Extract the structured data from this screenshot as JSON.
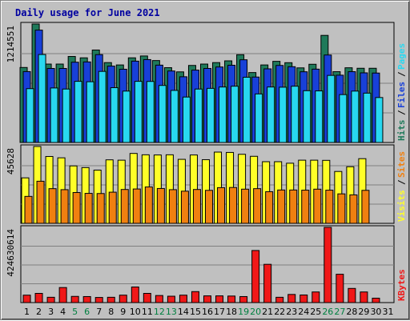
{
  "title": "Daily usage for June 2021",
  "colors": {
    "hits": "#1f7a5a",
    "files": "#1840d8",
    "pages": "#28d8f0",
    "visits": "#ffff28",
    "sites": "#f08010",
    "kbytes": "#f01818",
    "weekend_label": "#008040",
    "weekday_label": "#000000"
  },
  "chart_data": [
    {
      "type": "bar",
      "categories": [
        "1",
        "2",
        "3",
        "4",
        "5",
        "6",
        "7",
        "8",
        "9",
        "10",
        "11",
        "12",
        "13",
        "14",
        "15",
        "16",
        "17",
        "18",
        "19",
        "20",
        "21",
        "22",
        "23",
        "24",
        "25",
        "26",
        "27",
        "28",
        "29",
        "30",
        "31"
      ],
      "weekend_days": [
        "5",
        "6",
        "12",
        "13",
        "19",
        "20",
        "26",
        "27"
      ],
      "ymax_label": "1214551",
      "ylim": [
        0,
        1214551
      ],
      "legend": [
        {
          "label": "Hits",
          "color": "#1f7a5a"
        },
        {
          "label": "Files",
          "color": "#1840d8"
        },
        {
          "label": "Pages",
          "color": "#28d8f0"
        }
      ],
      "series": [
        {
          "name": "Hits",
          "values": [
            769000,
            1214551,
            804000,
            804000,
            882000,
            868000,
            948000,
            819000,
            795000,
            868000,
            887000,
            840000,
            767000,
            724000,
            790000,
            804000,
            819000,
            837000,
            900000,
            717000,
            795000,
            832000,
            818000,
            765000,
            802000,
            1098000,
            726000,
            766000,
            761000,
            761000,
            0
          ]
        },
        {
          "name": "Files",
          "values": [
            727000,
            1152000,
            759000,
            759000,
            823000,
            826000,
            901000,
            783000,
            751000,
            834000,
            850000,
            793000,
            733000,
            674000,
            742000,
            759000,
            774000,
            792000,
            848000,
            671000,
            755000,
            790000,
            777000,
            725000,
            752000,
            897000,
            690000,
            726000,
            714000,
            712000,
            0
          ]
        },
        {
          "name": "Pages",
          "values": [
            552000,
            902000,
            559000,
            548000,
            627000,
            623000,
            729000,
            562000,
            527000,
            627000,
            626000,
            585000,
            534000,
            466000,
            548000,
            555000,
            569000,
            577000,
            669000,
            498000,
            569000,
            567000,
            577000,
            531000,
            529000,
            688000,
            491000,
            527000,
            506000,
            461000,
            0
          ]
        }
      ]
    },
    {
      "type": "bar",
      "categories": [
        "1",
        "2",
        "3",
        "4",
        "5",
        "6",
        "7",
        "8",
        "9",
        "10",
        "11",
        "12",
        "13",
        "14",
        "15",
        "16",
        "17",
        "18",
        "19",
        "20",
        "21",
        "22",
        "23",
        "24",
        "25",
        "26",
        "27",
        "28",
        "29",
        "30",
        "31"
      ],
      "ymax_label": "45628",
      "ylim": [
        0,
        45628
      ],
      "legend": [
        {
          "label": "Visits",
          "color": "#ffff28"
        },
        {
          "label": "Sites",
          "color": "#f08010"
        }
      ],
      "series": [
        {
          "name": "Visits",
          "values": [
            27000,
            45628,
            39700,
            38900,
            34100,
            33100,
            31600,
            37700,
            37500,
            41500,
            40700,
            40600,
            40700,
            38000,
            40600,
            37800,
            42300,
            42100,
            41000,
            39800,
            36600,
            36600,
            35700,
            37500,
            37500,
            37400,
            30800,
            33600,
            38400,
            0,
            0
          ]
        },
        {
          "name": "Sites",
          "values": [
            16000,
            25000,
            20600,
            20000,
            18300,
            17800,
            17700,
            18500,
            20100,
            20400,
            21600,
            20700,
            20000,
            19100,
            20100,
            19600,
            21200,
            21300,
            20300,
            20600,
            18800,
            19800,
            19800,
            19700,
            20300,
            19700,
            17500,
            16900,
            19600,
            0,
            0
          ]
        }
      ]
    },
    {
      "type": "bar",
      "categories": [
        "1",
        "2",
        "3",
        "4",
        "5",
        "6",
        "7",
        "8",
        "9",
        "10",
        "11",
        "12",
        "13",
        "14",
        "15",
        "16",
        "17",
        "18",
        "19",
        "20",
        "21",
        "22",
        "23",
        "24",
        "25",
        "26",
        "27",
        "28",
        "29",
        "30",
        "31"
      ],
      "ymax_label": "424630614",
      "ylim": [
        0,
        424630614
      ],
      "legend": [
        {
          "label": "KBytes",
          "color": "#f01818"
        }
      ],
      "series": [
        {
          "name": "KBytes",
          "values": [
            42000000,
            52000000,
            30000000,
            85000000,
            35000000,
            34000000,
            29000000,
            30000000,
            42000000,
            88000000,
            52000000,
            40000000,
            36000000,
            42000000,
            62000000,
            38000000,
            38000000,
            37000000,
            34000000,
            294000000,
            216000000,
            30000000,
            46000000,
            43000000,
            60000000,
            424630614,
            160000000,
            80000000,
            60000000,
            25000000,
            0
          ]
        }
      ]
    }
  ]
}
